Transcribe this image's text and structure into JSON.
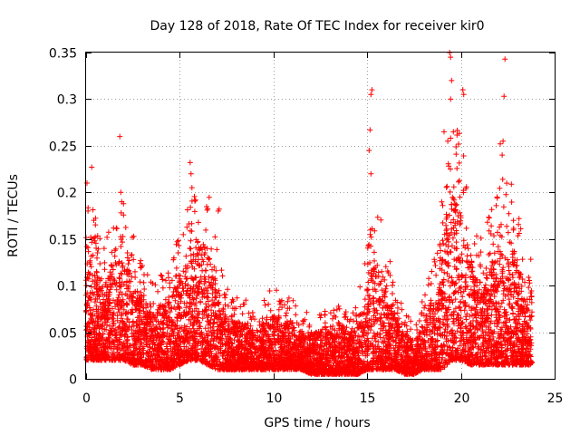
{
  "chart_data": {
    "type": "scatter",
    "title": "Day 128 of 2018, Rate Of TEC Index for receiver kir0",
    "xlabel": "GPS time / hours",
    "ylabel": "ROTI / TECUs",
    "xlim": [
      0,
      25
    ],
    "ylim": [
      0,
      0.35
    ],
    "grid": true,
    "marker": "+",
    "color": "#ff0000",
    "x_ticks": [
      0,
      5,
      10,
      15,
      20,
      25
    ],
    "x_tick_labels": [
      "0",
      "5",
      "10",
      "15",
      "20",
      "25"
    ],
    "y_ticks": [
      0,
      0.05,
      0.1,
      0.15,
      0.2,
      0.25,
      0.3,
      0.35
    ],
    "y_tick_labels": [
      "0",
      "0.05",
      "0.1",
      "0.15",
      "0.2",
      "0.25",
      "0.3",
      "0.35"
    ],
    "data_extent_hours": [
      0,
      23.8
    ],
    "envelope": {
      "hours": [
        0,
        0.5,
        1,
        1.5,
        2,
        2.5,
        3,
        3.5,
        4,
        4.5,
        5,
        5.5,
        6,
        6.5,
        7,
        7.5,
        8,
        8.5,
        9,
        9.5,
        10,
        10.5,
        11,
        11.5,
        12,
        12.5,
        13,
        13.5,
        14,
        14.5,
        15,
        15.5,
        16,
        16.5,
        17,
        17.5,
        18,
        18.5,
        19,
        19.5,
        20,
        20.5,
        21,
        21.5,
        22,
        22.5,
        23,
        23.5,
        23.8
      ],
      "typical_max": [
        0.15,
        0.12,
        0.1,
        0.13,
        0.13,
        0.11,
        0.09,
        0.07,
        0.08,
        0.09,
        0.11,
        0.13,
        0.15,
        0.14,
        0.1,
        0.07,
        0.06,
        0.06,
        0.05,
        0.06,
        0.07,
        0.06,
        0.06,
        0.05,
        0.05,
        0.05,
        0.05,
        0.06,
        0.05,
        0.06,
        0.1,
        0.14,
        0.1,
        0.07,
        0.05,
        0.04,
        0.06,
        0.09,
        0.14,
        0.2,
        0.18,
        0.13,
        0.11,
        0.12,
        0.14,
        0.16,
        0.13,
        0.09,
        0.09
      ],
      "typical_min": [
        0.02,
        0.02,
        0.02,
        0.02,
        0.02,
        0.015,
        0.015,
        0.01,
        0.01,
        0.01,
        0.015,
        0.02,
        0.02,
        0.015,
        0.01,
        0.01,
        0.01,
        0.01,
        0.01,
        0.01,
        0.01,
        0.01,
        0.01,
        0.01,
        0.005,
        0.005,
        0.005,
        0.005,
        0.005,
        0.005,
        0.01,
        0.01,
        0.01,
        0.01,
        0.005,
        0.005,
        0.01,
        0.01,
        0.01,
        0.02,
        0.02,
        0.015,
        0.015,
        0.015,
        0.015,
        0.015,
        0.015,
        0.015,
        0.015
      ]
    },
    "peaks": [
      {
        "x": 0.05,
        "y": 0.21
      },
      {
        "x": 0.1,
        "y": 0.18
      },
      {
        "x": 0.3,
        "y": 0.227
      },
      {
        "x": 1.8,
        "y": 0.26
      },
      {
        "x": 1.85,
        "y": 0.2
      },
      {
        "x": 1.9,
        "y": 0.19
      },
      {
        "x": 5.55,
        "y": 0.232
      },
      {
        "x": 5.6,
        "y": 0.22
      },
      {
        "x": 5.65,
        "y": 0.205
      },
      {
        "x": 7.05,
        "y": 0.18
      },
      {
        "x": 7.1,
        "y": 0.182
      },
      {
        "x": 15.25,
        "y": 0.31
      },
      {
        "x": 15.2,
        "y": 0.305
      },
      {
        "x": 15.15,
        "y": 0.267
      },
      {
        "x": 15.1,
        "y": 0.245
      },
      {
        "x": 15.2,
        "y": 0.22
      },
      {
        "x": 19.4,
        "y": 0.35
      },
      {
        "x": 19.45,
        "y": 0.345
      },
      {
        "x": 19.5,
        "y": 0.32
      },
      {
        "x": 19.45,
        "y": 0.3
      },
      {
        "x": 19.6,
        "y": 0.265
      },
      {
        "x": 19.3,
        "y": 0.255
      },
      {
        "x": 20.1,
        "y": 0.31
      },
      {
        "x": 20.15,
        "y": 0.305
      },
      {
        "x": 19.1,
        "y": 0.265
      },
      {
        "x": 22.35,
        "y": 0.343
      },
      {
        "x": 22.3,
        "y": 0.303
      },
      {
        "x": 22.25,
        "y": 0.255
      },
      {
        "x": 22.1,
        "y": 0.252
      },
      {
        "x": 22.2,
        "y": 0.24
      }
    ]
  }
}
